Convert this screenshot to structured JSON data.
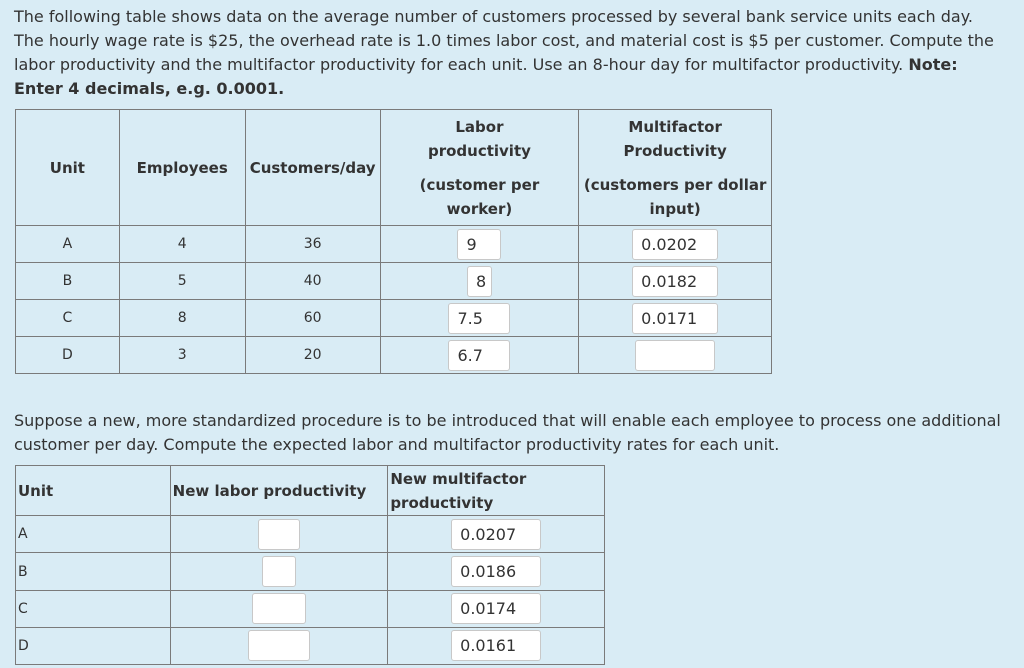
{
  "intro": {
    "text": "The following table shows data on the average number of customers processed by several bank service units each day. The hourly wage rate is $25, the overhead rate is 1.0 times labor cost, and material cost is $5 per customer. Compute the labor productivity and the multifactor productivity for each unit. Use an 8-hour day for multifactor productivity. ",
    "note": "Note: Enter 4 decimals, e.g. 0.0001."
  },
  "table1": {
    "headers": {
      "unit": "Unit",
      "employees": "Employees",
      "customers": "Customers/day",
      "labor_line1": "Labor",
      "labor_line2": "productivity",
      "labor_line3": "(customer per",
      "labor_line4": "worker)",
      "multi_line1": "Multifactor",
      "multi_line2": "Productivity",
      "multi_line3": "(customers per dollar",
      "multi_line4": "input)"
    },
    "rows": [
      {
        "unit": "A",
        "employees": "4",
        "customers": "36",
        "labor": "9",
        "multifactor": "0.0202"
      },
      {
        "unit": "B",
        "employees": "5",
        "customers": "40",
        "labor": "8",
        "multifactor": "0.0182"
      },
      {
        "unit": "C",
        "employees": "8",
        "customers": "60",
        "labor": "7.5",
        "multifactor": "0.0171"
      },
      {
        "unit": "D",
        "employees": "3",
        "customers": "20",
        "labor": "6.7",
        "multifactor": ""
      }
    ]
  },
  "question2": {
    "text": "Suppose a new, more standardized procedure is to be introduced that will enable each employee to process one additional customer per day. Compute the expected labor and multifactor productivity rates for each unit."
  },
  "table2": {
    "headers": {
      "unit": "Unit",
      "new_labor": "New labor productivity",
      "new_multi_line1": "New multifactor",
      "new_multi_line2": "productivity"
    },
    "rows": [
      {
        "unit": "A",
        "new_labor": "",
        "new_multifactor": "0.0207"
      },
      {
        "unit": "B",
        "new_labor": "",
        "new_multifactor": "0.0186"
      },
      {
        "unit": "C",
        "new_labor": "",
        "new_multifactor": "0.0174"
      },
      {
        "unit": "D",
        "new_labor": "",
        "new_multifactor": "0.0161"
      }
    ]
  }
}
